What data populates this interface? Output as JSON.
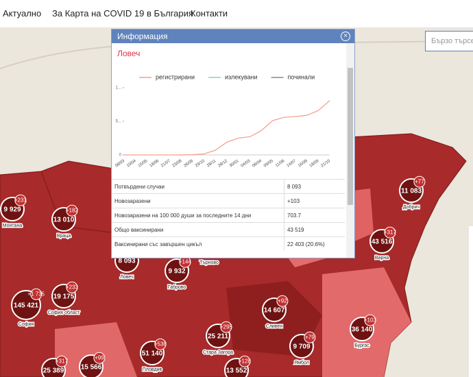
{
  "nav": {
    "items": [
      "Актуално",
      "За Карта на COVID 19 в България",
      "Контакти"
    ],
    "search_placeholder": "Бързо търсе"
  },
  "popup": {
    "title": "Информация",
    "region": "Ловеч",
    "chart_data": {
      "type": "line",
      "x": [
        "08/03",
        "10/04",
        "15/05",
        "18/06",
        "21/07",
        "23/08",
        "26/09",
        "29/10",
        "28/11",
        "28/12",
        "30/01",
        "04/03",
        "06/04",
        "09/05",
        "11/06",
        "14/07",
        "16/08",
        "18/09",
        "21/10"
      ],
      "series": [
        {
          "name": "регистрирани",
          "color": "#f4a090",
          "values": [
            0,
            0,
            0,
            0,
            0,
            5,
            30,
            150,
            700,
            1900,
            2500,
            2700,
            3600,
            5100,
            5600,
            5700,
            5900,
            6600,
            8100
          ]
        },
        {
          "name": "излекувани",
          "color": "#7fd9c0"
        },
        {
          "name": "починали",
          "color": "#888888"
        }
      ],
      "ylim": [
        0,
        10000
      ],
      "yticks": [
        0,
        {
          "value": 5000,
          "label": "5..."
        },
        {
          "value": 10000,
          "label": "1..."
        }
      ]
    },
    "table": {
      "rows": [
        [
          "Потвърдени случаи",
          "8 093"
        ],
        [
          "Новозаразени",
          "+103"
        ],
        [
          "Новозаразени на 100 000 души за последните 14 дни",
          "703.7"
        ],
        [
          "Общо ваксинирани",
          "43 519"
        ],
        [
          "Ваксинирани със завършен цикъл",
          "22 403 (20.6%)"
        ]
      ]
    }
  },
  "markers": [
    {
      "value": "9 929",
      "delta": "+231",
      "label": "Монтана"
    },
    {
      "value": "13 010",
      "delta": "+182",
      "label": "Враца"
    },
    {
      "value": "8 093",
      "label": "Ловеч"
    },
    {
      "value": "9 932",
      "delta": "+144",
      "label": "Габрово"
    },
    {
      "label": "Търново"
    },
    {
      "value": "11 083",
      "delta": "+77",
      "label": "Добрич"
    },
    {
      "value": "43 516",
      "delta": "+317",
      "label": "Варна"
    },
    {
      "value": "145 421",
      "delta": "+1 735",
      "label": "София"
    },
    {
      "value": "19 175",
      "delta": "+233",
      "label": "София област"
    },
    {
      "value": "14 607",
      "delta": "+92",
      "label": "Сливен"
    },
    {
      "value": "25 211",
      "delta": "+295",
      "label": "Стара Загора"
    },
    {
      "value": "9 709",
      "delta": "+79",
      "label": "Ямбол"
    },
    {
      "value": "36 140",
      "delta": "+103",
      "label": "Бургас"
    },
    {
      "value": "51 140",
      "delta": "+538",
      "label": "Пловдив"
    },
    {
      "value": "25 389",
      "delta": "+317"
    },
    {
      "value": "15 566",
      "delta": "+99"
    },
    {
      "value": "13 552",
      "delta": "+128"
    }
  ]
}
